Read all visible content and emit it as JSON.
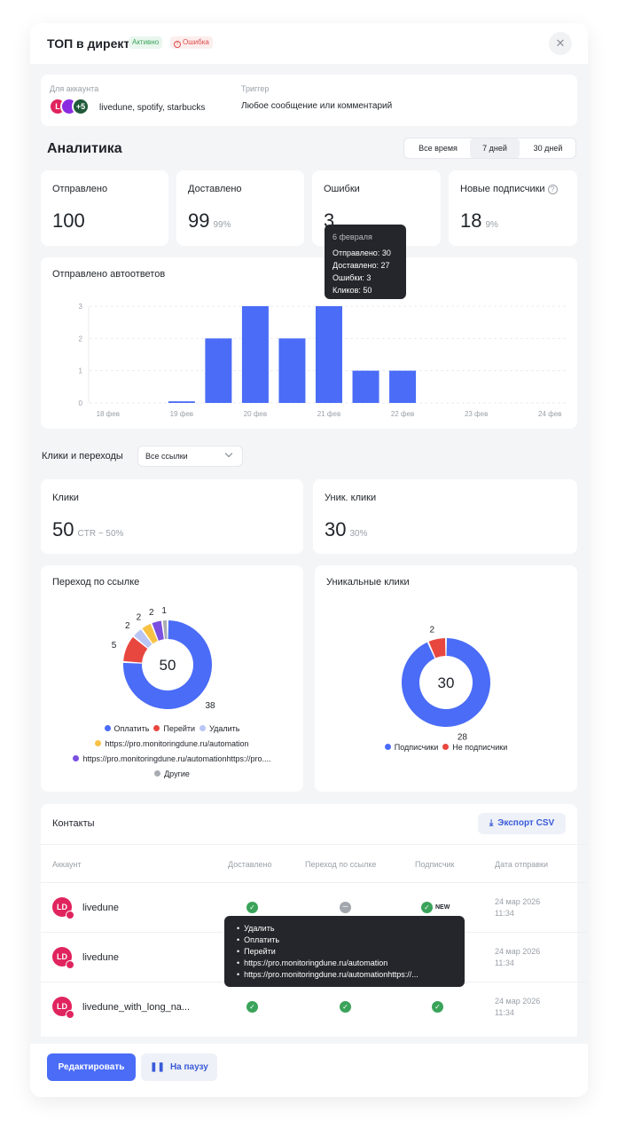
{
  "header": {
    "title": "ТОП в директ",
    "badge_active": "Активно",
    "badge_error": "Ошибка"
  },
  "account": {
    "label": "Для аккаунта",
    "names": "livedune, spotify, starbucks",
    "avatar_l": "L",
    "avatar_more": "+5",
    "trigger_label": "Триггер",
    "trigger_value": "Любое сообщение или комментарий"
  },
  "analytics": {
    "title": "Аналитика",
    "periods": [
      "Все время",
      "7 дней",
      "30 дней"
    ],
    "selected_period": "7 дней",
    "stats": [
      {
        "label": "Отправлено",
        "value": "100",
        "sub": ""
      },
      {
        "label": "Доставлено",
        "value": "99",
        "sub": "99%"
      },
      {
        "label": "Ошибки",
        "value": "3",
        "sub": ""
      },
      {
        "label": "Новые подписчики",
        "value": "18",
        "sub": "9%"
      }
    ]
  },
  "bar_tooltip": {
    "date": "6 февраля",
    "lines": [
      "Отправлено: 30",
      "Доставлено: 27",
      "Ошибки: 3",
      "Кликов: 50"
    ]
  },
  "chart_data": [
    {
      "type": "bar",
      "title": "Отправлено автоответов",
      "categories": [
        "18 фев",
        "",
        "19 фев",
        "",
        "20 фев",
        "",
        "21 фев",
        "",
        "22 фев",
        "",
        "23 фев",
        "",
        "24 фев"
      ],
      "values": [
        0,
        0,
        0.05,
        2,
        3,
        2,
        3,
        1,
        1,
        0,
        0,
        0,
        0
      ],
      "ylim": [
        0,
        3
      ],
      "yticks": [
        "0",
        "1",
        "2",
        "3"
      ],
      "color": "#4a6cf7"
    },
    {
      "type": "pie",
      "title": "Переход по ссылке",
      "center": "50",
      "categories": [
        "Оплатить",
        "Перейти",
        "Удалить",
        "https://pro.monitoringdune.ru/automation",
        "https://pro.monitoringdune.ru/automationhttps://pro....",
        "Другие"
      ],
      "values": [
        38,
        5,
        2,
        2,
        2,
        1
      ],
      "colors": [
        "#4a6cf7",
        "#e8473f",
        "#b9c6f5",
        "#f7c244",
        "#7b4fe0",
        "#a9acb2"
      ]
    },
    {
      "type": "pie",
      "title": "Уникальные клики",
      "center": "30",
      "categories": [
        "Подписчики",
        "Не подписчики"
      ],
      "values": [
        28,
        2
      ],
      "colors": [
        "#4a6cf7",
        "#e8473f"
      ]
    }
  ],
  "clicks": {
    "label": "Клики и переходы",
    "filter": "Все ссылки",
    "stats": [
      {
        "label": "Клики",
        "value": "50",
        "sub": "CTR ~ 50%"
      },
      {
        "label": "Уник. клики",
        "value": "30",
        "sub": "30%"
      }
    ]
  },
  "contacts": {
    "title": "Контакты",
    "export_label": "Экспорт CSV",
    "columns": [
      "Аккаунт",
      "Доставлено",
      "Переход по ссылке",
      "Подписчик",
      "Дата отправки"
    ],
    "rows": [
      {
        "avatar": "LD",
        "name": "livedune",
        "date": "24 мар 2026",
        "time": "11:34",
        "badge": "NEW"
      },
      {
        "avatar": "LD",
        "name": "livedune",
        "date": "24 мар 2026",
        "time": "11:34",
        "badge": ""
      },
      {
        "avatar": "LD",
        "name": "livedune_with_long_na...",
        "date": "24 мар 2026",
        "time": "11:34",
        "badge": ""
      }
    ],
    "tooltip_items": [
      "Удалить",
      "Оплатить",
      "Перейти",
      "https://pro.monitoringdune.ru/automation",
      "https://pro.monitoringdune.ru/automationhttps://..."
    ]
  },
  "footer": {
    "edit_label": "Редактировать",
    "pause_label": "На паузу"
  },
  "colors": {
    "accent": "#4a6cf7",
    "success": "#3aa35a",
    "danger": "#e04a4a"
  }
}
